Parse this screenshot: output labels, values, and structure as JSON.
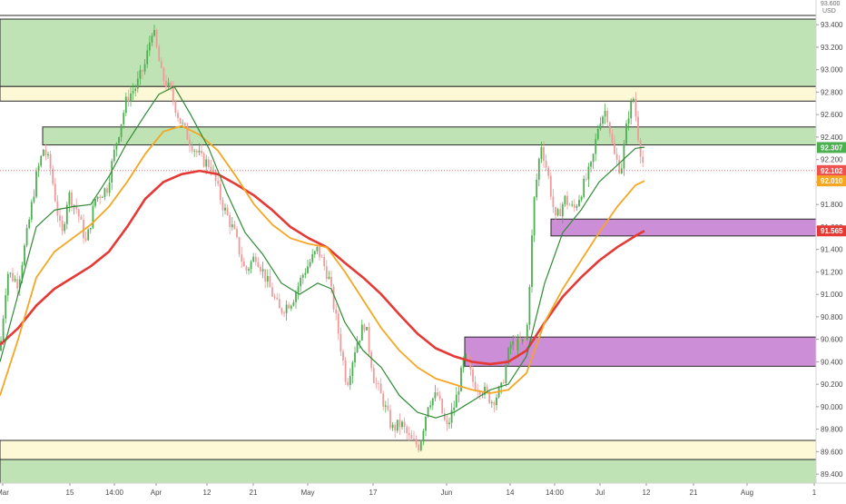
{
  "chart_data": {
    "type": "candlestick",
    "currency_label": "USD",
    "top_price_label": "93.600",
    "ylim": [
      89.32,
      93.62
    ],
    "y_ticks": [
      "93.400",
      "93.200",
      "93.000",
      "92.800",
      "92.600",
      "92.400",
      "92.200",
      "92.000",
      "91.800",
      "91.600",
      "91.400",
      "91.200",
      "91.000",
      "90.800",
      "90.600",
      "90.400",
      "90.200",
      "90.000",
      "89.800",
      "89.600",
      "89.400"
    ],
    "x_ticks": [
      "Mar",
      "15",
      "14:00",
      "Apr",
      "12",
      "21",
      "May",
      "17",
      "Jun",
      "14",
      "14:00",
      "Jul",
      "12",
      "21",
      "Aug",
      "1"
    ],
    "price_badges": [
      {
        "label": "92.307",
        "value": 92.307,
        "color": "#4caf50"
      },
      {
        "label": "92.102",
        "value": 92.102,
        "color": "#ef5350"
      },
      {
        "label": "92.010",
        "value": 92.01,
        "color": "#f5a623"
      },
      {
        "label": "91.565",
        "value": 91.565,
        "color": "#e53935"
      }
    ],
    "zones": [
      {
        "color": "green",
        "low": 92.85,
        "high": 93.45
      },
      {
        "color": "yellow",
        "low": 92.72,
        "high": 92.85
      },
      {
        "color": "green",
        "low": 92.33,
        "high": 92.49
      },
      {
        "color": "purple",
        "low": 91.52,
        "high": 91.67
      },
      {
        "color": "purple",
        "low": 90.36,
        "high": 90.62
      },
      {
        "color": "yellow",
        "low": 89.53,
        "high": 89.7
      },
      {
        "color": "green",
        "low": 89.32,
        "high": 89.53
      }
    ],
    "close_series": [
      {
        "x": 0,
        "v": 90.5
      },
      {
        "x": 8,
        "v": 91.2
      },
      {
        "x": 20,
        "v": 91.1
      },
      {
        "x": 30,
        "v": 91.55
      },
      {
        "x": 40,
        "v": 92.05
      },
      {
        "x": 48,
        "v": 92.3
      },
      {
        "x": 55,
        "v": 92.15
      },
      {
        "x": 62,
        "v": 91.8
      },
      {
        "x": 68,
        "v": 91.5
      },
      {
        "x": 75,
        "v": 91.9
      },
      {
        "x": 85,
        "v": 91.75
      },
      {
        "x": 95,
        "v": 91.45
      },
      {
        "x": 105,
        "v": 91.85
      },
      {
        "x": 118,
        "v": 91.95
      },
      {
        "x": 128,
        "v": 92.35
      },
      {
        "x": 140,
        "v": 92.75
      },
      {
        "x": 150,
        "v": 92.85
      },
      {
        "x": 160,
        "v": 93.05
      },
      {
        "x": 168,
        "v": 93.38
      },
      {
        "x": 178,
        "v": 92.95
      },
      {
        "x": 188,
        "v": 92.8
      },
      {
        "x": 198,
        "v": 92.55
      },
      {
        "x": 210,
        "v": 92.35
      },
      {
        "x": 222,
        "v": 92.2
      },
      {
        "x": 232,
        "v": 92.15
      },
      {
        "x": 245,
        "v": 91.8
      },
      {
        "x": 258,
        "v": 91.55
      },
      {
        "x": 270,
        "v": 91.2
      },
      {
        "x": 282,
        "v": 91.35
      },
      {
        "x": 295,
        "v": 91.1
      },
      {
        "x": 308,
        "v": 90.85
      },
      {
        "x": 322,
        "v": 90.95
      },
      {
        "x": 335,
        "v": 91.2
      },
      {
        "x": 350,
        "v": 91.4
      },
      {
        "x": 362,
        "v": 91.15
      },
      {
        "x": 372,
        "v": 90.7
      },
      {
        "x": 382,
        "v": 90.2
      },
      {
        "x": 392,
        "v": 90.55
      },
      {
        "x": 402,
        "v": 90.75
      },
      {
        "x": 412,
        "v": 90.25
      },
      {
        "x": 422,
        "v": 90.05
      },
      {
        "x": 432,
        "v": 89.8
      },
      {
        "x": 442,
        "v": 89.85
      },
      {
        "x": 452,
        "v": 89.7
      },
      {
        "x": 462,
        "v": 89.65
      },
      {
        "x": 472,
        "v": 90.05
      },
      {
        "x": 482,
        "v": 90.1
      },
      {
        "x": 492,
        "v": 89.8
      },
      {
        "x": 502,
        "v": 90.05
      },
      {
        "x": 512,
        "v": 90.45
      },
      {
        "x": 522,
        "v": 90.2
      },
      {
        "x": 532,
        "v": 90.15
      },
      {
        "x": 542,
        "v": 90.05
      },
      {
        "x": 552,
        "v": 90.15
      },
      {
        "x": 562,
        "v": 90.55
      },
      {
        "x": 572,
        "v": 90.55
      },
      {
        "x": 580,
        "v": 90.6
      },
      {
        "x": 588,
        "v": 91.8
      },
      {
        "x": 596,
        "v": 92.35
      },
      {
        "x": 604,
        "v": 92.05
      },
      {
        "x": 612,
        "v": 91.65
      },
      {
        "x": 622,
        "v": 91.85
      },
      {
        "x": 632,
        "v": 91.75
      },
      {
        "x": 642,
        "v": 91.95
      },
      {
        "x": 652,
        "v": 92.15
      },
      {
        "x": 660,
        "v": 92.55
      },
      {
        "x": 668,
        "v": 92.65
      },
      {
        "x": 676,
        "v": 92.25
      },
      {
        "x": 684,
        "v": 92.1
      },
      {
        "x": 692,
        "v": 92.6
      },
      {
        "x": 698,
        "v": 92.75
      },
      {
        "x": 704,
        "v": 92.35
      },
      {
        "x": 710,
        "v": 92.1
      }
    ],
    "ma_fast": [
      {
        "x": 0,
        "v": 90.4
      },
      {
        "x": 20,
        "v": 91.0
      },
      {
        "x": 40,
        "v": 91.6
      },
      {
        "x": 60,
        "v": 91.75
      },
      {
        "x": 80,
        "v": 91.78
      },
      {
        "x": 100,
        "v": 91.8
      },
      {
        "x": 120,
        "v": 92.05
      },
      {
        "x": 140,
        "v": 92.35
      },
      {
        "x": 160,
        "v": 92.6
      },
      {
        "x": 175,
        "v": 92.78
      },
      {
        "x": 192,
        "v": 92.85
      },
      {
        "x": 210,
        "v": 92.6
      },
      {
        "x": 230,
        "v": 92.3
      },
      {
        "x": 250,
        "v": 91.9
      },
      {
        "x": 270,
        "v": 91.55
      },
      {
        "x": 290,
        "v": 91.35
      },
      {
        "x": 310,
        "v": 91.1
      },
      {
        "x": 330,
        "v": 91.0
      },
      {
        "x": 350,
        "v": 91.1
      },
      {
        "x": 365,
        "v": 91.05
      },
      {
        "x": 380,
        "v": 90.75
      },
      {
        "x": 400,
        "v": 90.5
      },
      {
        "x": 420,
        "v": 90.35
      },
      {
        "x": 440,
        "v": 90.1
      },
      {
        "x": 460,
        "v": 89.95
      },
      {
        "x": 480,
        "v": 89.9
      },
      {
        "x": 500,
        "v": 89.95
      },
      {
        "x": 520,
        "v": 90.05
      },
      {
        "x": 540,
        "v": 90.15
      },
      {
        "x": 560,
        "v": 90.2
      },
      {
        "x": 580,
        "v": 90.45
      },
      {
        "x": 600,
        "v": 91.1
      },
      {
        "x": 620,
        "v": 91.55
      },
      {
        "x": 640,
        "v": 91.75
      },
      {
        "x": 660,
        "v": 92.0
      },
      {
        "x": 680,
        "v": 92.15
      },
      {
        "x": 700,
        "v": 92.3
      },
      {
        "x": 710,
        "v": 92.31
      }
    ],
    "ma_mid": [
      {
        "x": 0,
        "v": 90.1
      },
      {
        "x": 20,
        "v": 90.6
      },
      {
        "x": 40,
        "v": 91.15
      },
      {
        "x": 60,
        "v": 91.38
      },
      {
        "x": 80,
        "v": 91.5
      },
      {
        "x": 100,
        "v": 91.62
      },
      {
        "x": 120,
        "v": 91.78
      },
      {
        "x": 140,
        "v": 92.0
      },
      {
        "x": 160,
        "v": 92.25
      },
      {
        "x": 180,
        "v": 92.45
      },
      {
        "x": 200,
        "v": 92.5
      },
      {
        "x": 220,
        "v": 92.42
      },
      {
        "x": 240,
        "v": 92.28
      },
      {
        "x": 260,
        "v": 92.05
      },
      {
        "x": 280,
        "v": 91.8
      },
      {
        "x": 300,
        "v": 91.62
      },
      {
        "x": 320,
        "v": 91.5
      },
      {
        "x": 340,
        "v": 91.45
      },
      {
        "x": 360,
        "v": 91.42
      },
      {
        "x": 380,
        "v": 91.2
      },
      {
        "x": 400,
        "v": 90.95
      },
      {
        "x": 420,
        "v": 90.7
      },
      {
        "x": 440,
        "v": 90.5
      },
      {
        "x": 460,
        "v": 90.35
      },
      {
        "x": 480,
        "v": 90.25
      },
      {
        "x": 500,
        "v": 90.2
      },
      {
        "x": 520,
        "v": 90.15
      },
      {
        "x": 540,
        "v": 90.12
      },
      {
        "x": 560,
        "v": 90.15
      },
      {
        "x": 580,
        "v": 90.3
      },
      {
        "x": 600,
        "v": 90.75
      },
      {
        "x": 620,
        "v": 91.05
      },
      {
        "x": 640,
        "v": 91.3
      },
      {
        "x": 660,
        "v": 91.55
      },
      {
        "x": 680,
        "v": 91.78
      },
      {
        "x": 700,
        "v": 91.97
      },
      {
        "x": 710,
        "v": 92.01
      }
    ],
    "ma_slow": [
      {
        "x": 0,
        "v": 90.55
      },
      {
        "x": 20,
        "v": 90.7
      },
      {
        "x": 40,
        "v": 90.9
      },
      {
        "x": 60,
        "v": 91.05
      },
      {
        "x": 80,
        "v": 91.15
      },
      {
        "x": 100,
        "v": 91.25
      },
      {
        "x": 120,
        "v": 91.38
      },
      {
        "x": 140,
        "v": 91.6
      },
      {
        "x": 160,
        "v": 91.85
      },
      {
        "x": 180,
        "v": 92.0
      },
      {
        "x": 200,
        "v": 92.07
      },
      {
        "x": 220,
        "v": 92.1
      },
      {
        "x": 240,
        "v": 92.07
      },
      {
        "x": 260,
        "v": 91.98
      },
      {
        "x": 280,
        "v": 91.88
      },
      {
        "x": 300,
        "v": 91.75
      },
      {
        "x": 320,
        "v": 91.6
      },
      {
        "x": 340,
        "v": 91.5
      },
      {
        "x": 360,
        "v": 91.42
      },
      {
        "x": 380,
        "v": 91.28
      },
      {
        "x": 400,
        "v": 91.15
      },
      {
        "x": 420,
        "v": 91.0
      },
      {
        "x": 440,
        "v": 90.82
      },
      {
        "x": 460,
        "v": 90.65
      },
      {
        "x": 480,
        "v": 90.52
      },
      {
        "x": 500,
        "v": 90.45
      },
      {
        "x": 520,
        "v": 90.4
      },
      {
        "x": 540,
        "v": 90.38
      },
      {
        "x": 560,
        "v": 90.4
      },
      {
        "x": 580,
        "v": 90.5
      },
      {
        "x": 600,
        "v": 90.75
      },
      {
        "x": 620,
        "v": 90.98
      },
      {
        "x": 640,
        "v": 91.15
      },
      {
        "x": 660,
        "v": 91.3
      },
      {
        "x": 680,
        "v": 91.42
      },
      {
        "x": 700,
        "v": 91.52
      },
      {
        "x": 710,
        "v": 91.565
      }
    ]
  }
}
